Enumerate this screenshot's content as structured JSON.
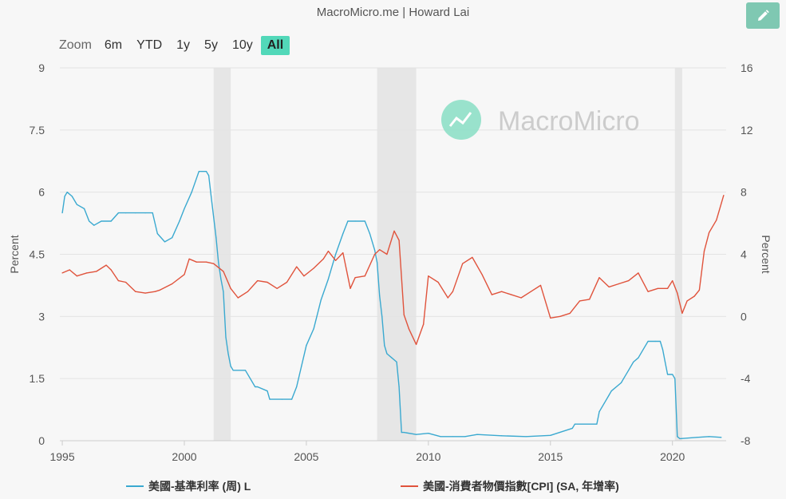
{
  "header": {
    "title": "MacroMicro.me | Howard Lai"
  },
  "toolbar": {
    "edit_icon": "pencil-icon",
    "accent": "#7fc8b2"
  },
  "zoom": {
    "label": "Zoom",
    "buttons": [
      "6m",
      "YTD",
      "1y",
      "5y",
      "10y",
      "All"
    ],
    "selected": "All",
    "accent": "#52d8b9"
  },
  "watermark": {
    "text": "MacroMicro",
    "icon": "macromicro-logo-icon"
  },
  "chart_data": {
    "type": "line",
    "grid": true,
    "legend_position": "bottom",
    "x_ticks": [
      "1995",
      "2000",
      "2005",
      "2010",
      "2015",
      "2020"
    ],
    "x_range": [
      1994.9,
      2022.2
    ],
    "recessions": [
      [
        2001.2,
        2001.9
      ],
      [
        2007.9,
        2009.5
      ],
      [
        2020.1,
        2020.4
      ]
    ],
    "y_left": {
      "label": "Percent",
      "range": [
        0,
        9
      ],
      "ticks": [
        "0",
        "1.5",
        "3",
        "4.5",
        "6",
        "7.5",
        "9"
      ]
    },
    "y_right": {
      "label": "Percent",
      "range": [
        -8,
        16
      ],
      "ticks": [
        "-8",
        "-4",
        "0",
        "4",
        "8",
        "12",
        "16"
      ]
    },
    "series": [
      {
        "name": "美國-基準利率 (周) L",
        "axis": "left",
        "color": "#3aa9d0",
        "x": [
          1995.0,
          1995.1,
          1995.2,
          1995.4,
          1995.6,
          1995.9,
          1996.1,
          1996.3,
          1996.6,
          1997.0,
          1997.3,
          1997.6,
          1998.0,
          1998.4,
          1998.7,
          1998.9,
          1999.2,
          1999.5,
          1999.8,
          2000.0,
          2000.3,
          2000.6,
          2000.9,
          2001.0,
          2001.1,
          2001.2,
          2001.3,
          2001.4,
          2001.5,
          2001.6,
          2001.7,
          2001.8,
          2001.9,
          2002.0,
          2002.5,
          2002.9,
          2003.0,
          2003.4,
          2003.5,
          2004.0,
          2004.4,
          2004.6,
          2004.8,
          2005.0,
          2005.3,
          2005.6,
          2005.9,
          2006.2,
          2006.5,
          2006.7,
          2007.0,
          2007.4,
          2007.6,
          2007.8,
          2007.9,
          2008.0,
          2008.1,
          2008.2,
          2008.3,
          2008.5,
          2008.7,
          2008.8,
          2008.9,
          2009.0,
          2009.5,
          2010.0,
          2010.5,
          2011.0,
          2011.5,
          2012.0,
          2013.0,
          2014.0,
          2015.0,
          2015.9,
          2016.0,
          2016.9,
          2017.0,
          2017.2,
          2017.4,
          2017.5,
          2017.9,
          2018.0,
          2018.2,
          2018.4,
          2018.6,
          2018.8,
          2019.0,
          2019.3,
          2019.5,
          2019.6,
          2019.7,
          2019.8,
          2020.0,
          2020.1,
          2020.2,
          2020.3,
          2021.0,
          2021.5,
          2022.0
        ],
        "y": [
          5.5,
          5.9,
          6.0,
          5.9,
          5.7,
          5.6,
          5.3,
          5.2,
          5.3,
          5.3,
          5.5,
          5.5,
          5.5,
          5.5,
          5.5,
          5.0,
          4.8,
          4.9,
          5.3,
          5.6,
          6.0,
          6.5,
          6.5,
          6.4,
          5.9,
          5.4,
          4.9,
          4.3,
          3.9,
          3.6,
          2.5,
          2.1,
          1.8,
          1.7,
          1.7,
          1.3,
          1.3,
          1.2,
          1.0,
          1.0,
          1.0,
          1.3,
          1.8,
          2.3,
          2.7,
          3.4,
          3.9,
          4.5,
          5.0,
          5.3,
          5.3,
          5.3,
          5.0,
          4.6,
          4.3,
          3.5,
          3.0,
          2.3,
          2.1,
          2.0,
          1.9,
          1.3,
          0.2,
          0.2,
          0.15,
          0.18,
          0.1,
          0.1,
          0.1,
          0.15,
          0.12,
          0.1,
          0.13,
          0.3,
          0.4,
          0.4,
          0.7,
          0.9,
          1.1,
          1.2,
          1.4,
          1.5,
          1.7,
          1.9,
          2.0,
          2.2,
          2.4,
          2.4,
          2.4,
          2.2,
          1.9,
          1.6,
          1.6,
          1.5,
          0.1,
          0.05,
          0.08,
          0.1,
          0.08
        ]
      },
      {
        "name": "美國-消費者物價指數[CPI] (SA, 年增率)",
        "axis": "right",
        "color": "#e0533c",
        "x": [
          1995.0,
          1995.3,
          1995.6,
          1996.0,
          1996.4,
          1996.8,
          1997.0,
          1997.3,
          1997.6,
          1998.0,
          1998.4,
          1998.8,
          1999.0,
          1999.5,
          2000.0,
          2000.2,
          2000.5,
          2000.9,
          2001.2,
          2001.6,
          2001.9,
          2002.2,
          2002.6,
          2003.0,
          2003.4,
          2003.8,
          2004.2,
          2004.6,
          2004.9,
          2005.3,
          2005.7,
          2005.9,
          2006.2,
          2006.5,
          2006.8,
          2007.0,
          2007.4,
          2007.8,
          2008.0,
          2008.3,
          2008.6,
          2008.8,
          2009.0,
          2009.2,
          2009.5,
          2009.8,
          2010.0,
          2010.4,
          2010.8,
          2011.0,
          2011.4,
          2011.8,
          2012.2,
          2012.6,
          2013.0,
          2013.4,
          2013.8,
          2014.2,
          2014.6,
          2015.0,
          2015.4,
          2015.8,
          2016.2,
          2016.6,
          2017.0,
          2017.4,
          2017.8,
          2018.2,
          2018.6,
          2019.0,
          2019.4,
          2019.8,
          2020.0,
          2020.2,
          2020.4,
          2020.6,
          2020.9,
          2021.1,
          2021.3,
          2021.5,
          2021.8,
          2022.1
        ],
        "y": [
          2.8,
          3.0,
          2.6,
          2.8,
          2.9,
          3.3,
          3.0,
          2.3,
          2.2,
          1.6,
          1.5,
          1.6,
          1.7,
          2.1,
          2.7,
          3.7,
          3.5,
          3.5,
          3.4,
          2.9,
          1.8,
          1.2,
          1.6,
          2.3,
          2.2,
          1.8,
          2.2,
          3.2,
          2.6,
          3.1,
          3.7,
          4.2,
          3.6,
          4.1,
          1.8,
          2.5,
          2.6,
          4.0,
          4.3,
          4.0,
          5.5,
          4.9,
          0.1,
          -0.8,
          -1.8,
          -0.5,
          2.6,
          2.2,
          1.2,
          1.6,
          3.4,
          3.8,
          2.7,
          1.4,
          1.6,
          1.4,
          1.2,
          1.6,
          2.0,
          -0.1,
          0.0,
          0.2,
          1.0,
          1.1,
          2.5,
          1.9,
          2.1,
          2.3,
          2.8,
          1.6,
          1.8,
          1.8,
          2.3,
          1.5,
          0.2,
          1.0,
          1.3,
          1.7,
          4.2,
          5.4,
          6.2,
          7.8
        ]
      }
    ]
  }
}
